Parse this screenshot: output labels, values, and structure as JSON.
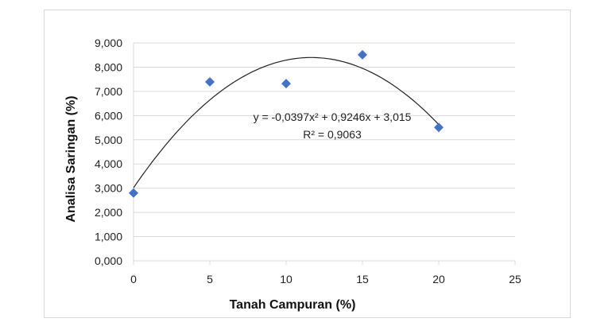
{
  "chart_data": {
    "type": "scatter",
    "title": "",
    "xlabel": "Tanah Campuran (%)",
    "ylabel": "Analisa Saringan (%)",
    "xlim": [
      0,
      25
    ],
    "ylim": [
      0,
      9
    ],
    "x_ticks": [
      "0",
      "5",
      "10",
      "15",
      "20",
      "25"
    ],
    "y_ticks": [
      "0,000",
      "1,000",
      "2,000",
      "3,000",
      "4,000",
      "5,000",
      "6,000",
      "7,000",
      "8,000",
      "9,000"
    ],
    "grid": "horizontal",
    "marker": "diamond",
    "marker_color": "#4472C4",
    "series": [
      {
        "x": [
          0,
          5,
          10,
          15,
          20
        ],
        "y": [
          2.8,
          7.39,
          7.32,
          8.51,
          5.51
        ]
      }
    ],
    "trendline": {
      "type": "polynomial",
      "coefficients": {
        "a": -0.0397,
        "b": 0.9246,
        "c": 3.015
      },
      "equation": "y = -0,0397x² + 0,9246x + 3,015",
      "r_squared": "R² = 0,9063"
    }
  }
}
